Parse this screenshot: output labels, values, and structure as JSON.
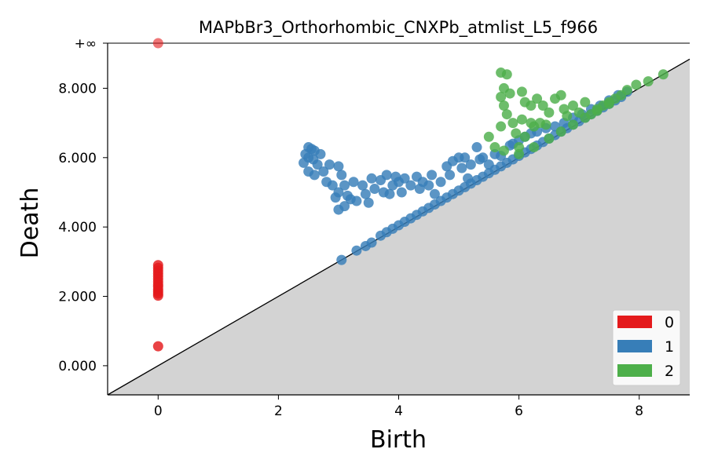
{
  "chart_data": {
    "type": "scatter",
    "title": "MAPbBr3_Orthorhombic_CNXPb_atmlist_L5_f966",
    "xlabel": "Birth",
    "ylabel": "Death",
    "xlim": [
      -0.84,
      8.84
    ],
    "ylim": [
      -0.84,
      9.3
    ],
    "x_ticks": [
      0,
      2,
      4,
      6,
      8
    ],
    "x_tick_labels": [
      "0",
      "2",
      "4",
      "6",
      "8"
    ],
    "y_ticks": [
      0,
      2,
      4,
      6,
      8
    ],
    "y_tick_labels": [
      "0.000",
      "2.000",
      "4.000",
      "6.000",
      "8.000"
    ],
    "infinity_value": 9.3,
    "infinity_label": "+∞",
    "diagonal": true,
    "legend_position": "bottom-right",
    "colors": {
      "0": "#e41a1c",
      "1": "#377eb8",
      "2": "#4daf4a",
      "diagonal_fill": "#d3d3d3"
    },
    "series": [
      {
        "name": "0",
        "color": "#e41a1c",
        "points": [
          [
            0,
            0.56
          ],
          [
            0,
            2.02
          ],
          [
            0,
            2.08
          ],
          [
            0,
            2.14
          ],
          [
            0,
            2.2
          ],
          [
            0,
            2.28
          ],
          [
            0,
            2.34
          ],
          [
            0,
            2.42
          ],
          [
            0,
            2.5
          ],
          [
            0,
            2.58
          ],
          [
            0,
            2.66
          ],
          [
            0,
            2.74
          ],
          [
            0,
            2.82
          ],
          [
            0,
            2.9
          ]
        ],
        "infinite_points": [
          [
            0,
            9.3
          ]
        ]
      },
      {
        "name": "1",
        "color": "#377eb8",
        "points": [
          [
            2.5,
            6.3
          ],
          [
            2.55,
            6.25
          ],
          [
            2.45,
            6.1
          ],
          [
            2.6,
            6.2
          ],
          [
            2.5,
            6.0
          ],
          [
            2.42,
            5.85
          ],
          [
            2.58,
            5.95
          ],
          [
            2.7,
            6.1
          ],
          [
            2.65,
            5.8
          ],
          [
            2.5,
            5.6
          ],
          [
            2.75,
            5.6
          ],
          [
            2.6,
            5.5
          ],
          [
            2.8,
            5.3
          ],
          [
            2.9,
            5.2
          ],
          [
            2.85,
            5.8
          ],
          [
            3.0,
            5.75
          ],
          [
            3.05,
            5.5
          ],
          [
            3.1,
            5.2
          ],
          [
            3.0,
            5.0
          ],
          [
            2.95,
            4.85
          ],
          [
            3.15,
            4.9
          ],
          [
            3.2,
            4.8
          ],
          [
            3.1,
            4.6
          ],
          [
            3.0,
            4.5
          ],
          [
            3.3,
            4.75
          ],
          [
            3.25,
            5.3
          ],
          [
            3.4,
            5.2
          ],
          [
            3.45,
            4.95
          ],
          [
            3.5,
            4.7
          ],
          [
            3.55,
            5.4
          ],
          [
            3.6,
            5.1
          ],
          [
            3.7,
            5.35
          ],
          [
            3.75,
            5.0
          ],
          [
            3.8,
            5.5
          ],
          [
            3.85,
            4.95
          ],
          [
            3.9,
            5.2
          ],
          [
            3.95,
            5.45
          ],
          [
            4.0,
            5.3
          ],
          [
            4.05,
            5.0
          ],
          [
            4.1,
            5.4
          ],
          [
            4.2,
            5.2
          ],
          [
            4.3,
            5.45
          ],
          [
            4.35,
            5.1
          ],
          [
            4.4,
            5.3
          ],
          [
            4.5,
            5.2
          ],
          [
            4.55,
            5.5
          ],
          [
            4.6,
            4.95
          ],
          [
            4.7,
            5.3
          ],
          [
            4.8,
            5.75
          ],
          [
            4.85,
            5.5
          ],
          [
            4.9,
            5.9
          ],
          [
            5.0,
            6.0
          ],
          [
            5.1,
            6.0
          ],
          [
            5.05,
            5.7
          ],
          [
            5.15,
            5.4
          ],
          [
            5.2,
            5.8
          ],
          [
            5.3,
            6.3
          ],
          [
            5.35,
            5.95
          ],
          [
            5.4,
            6.0
          ],
          [
            5.5,
            5.8
          ],
          [
            5.6,
            6.1
          ],
          [
            5.7,
            6.05
          ],
          [
            5.85,
            6.35
          ],
          [
            5.9,
            6.4
          ],
          [
            6.0,
            6.5
          ],
          [
            6.1,
            6.6
          ],
          [
            6.2,
            6.7
          ],
          [
            6.3,
            6.75
          ],
          [
            6.45,
            6.85
          ],
          [
            6.6,
            6.9
          ],
          [
            6.75,
            7.0
          ],
          [
            6.9,
            7.15
          ],
          [
            7.05,
            7.25
          ],
          [
            7.2,
            7.4
          ],
          [
            7.35,
            7.5
          ],
          [
            7.5,
            7.65
          ],
          [
            7.65,
            7.8
          ],
          [
            7.8,
            7.9
          ],
          [
            3.05,
            3.05
          ],
          [
            3.3,
            3.32
          ],
          [
            3.45,
            3.45
          ],
          [
            3.55,
            3.55
          ],
          [
            3.7,
            3.75
          ],
          [
            3.8,
            3.85
          ],
          [
            3.9,
            3.95
          ],
          [
            4.0,
            4.05
          ],
          [
            4.1,
            4.15
          ],
          [
            4.2,
            4.25
          ],
          [
            4.3,
            4.35
          ],
          [
            4.4,
            4.45
          ],
          [
            4.5,
            4.55
          ],
          [
            4.6,
            4.65
          ],
          [
            4.7,
            4.75
          ],
          [
            4.8,
            4.85
          ],
          [
            4.9,
            4.95
          ],
          [
            5.0,
            5.05
          ],
          [
            5.1,
            5.15
          ],
          [
            5.2,
            5.25
          ],
          [
            5.3,
            5.35
          ],
          [
            5.4,
            5.45
          ],
          [
            5.5,
            5.55
          ],
          [
            5.6,
            5.65
          ],
          [
            5.7,
            5.75
          ],
          [
            5.8,
            5.85
          ],
          [
            5.9,
            5.95
          ],
          [
            6.0,
            6.05
          ],
          [
            6.1,
            6.15
          ],
          [
            6.2,
            6.25
          ],
          [
            6.3,
            6.35
          ],
          [
            6.4,
            6.45
          ],
          [
            6.5,
            6.55
          ],
          [
            6.6,
            6.65
          ],
          [
            6.7,
            6.75
          ],
          [
            6.8,
            6.85
          ],
          [
            6.9,
            6.95
          ],
          [
            7.0,
            7.05
          ],
          [
            7.1,
            7.15
          ],
          [
            7.2,
            7.25
          ],
          [
            7.3,
            7.35
          ],
          [
            7.4,
            7.45
          ],
          [
            7.5,
            7.55
          ],
          [
            7.6,
            7.65
          ],
          [
            7.7,
            7.75
          ]
        ]
      },
      {
        "name": "2",
        "color": "#4daf4a",
        "points": [
          [
            5.7,
            8.45
          ],
          [
            5.8,
            8.4
          ],
          [
            5.75,
            8.0
          ],
          [
            5.7,
            7.75
          ],
          [
            5.85,
            7.85
          ],
          [
            5.75,
            7.5
          ],
          [
            5.8,
            7.25
          ],
          [
            5.9,
            7.0
          ],
          [
            5.7,
            6.9
          ],
          [
            6.05,
            7.9
          ],
          [
            6.1,
            7.6
          ],
          [
            6.2,
            7.5
          ],
          [
            6.05,
            7.1
          ],
          [
            6.2,
            7.0
          ],
          [
            5.95,
            6.7
          ],
          [
            6.1,
            6.6
          ],
          [
            6.3,
            7.7
          ],
          [
            6.4,
            7.5
          ],
          [
            6.5,
            7.3
          ],
          [
            6.35,
            7.0
          ],
          [
            6.6,
            7.7
          ],
          [
            6.7,
            7.8
          ],
          [
            6.75,
            7.4
          ],
          [
            6.8,
            7.2
          ],
          [
            6.9,
            7.5
          ],
          [
            7.0,
            7.3
          ],
          [
            7.1,
            7.6
          ],
          [
            7.2,
            7.25
          ],
          [
            7.3,
            7.4
          ],
          [
            7.4,
            7.5
          ],
          [
            7.5,
            7.6
          ],
          [
            7.6,
            7.7
          ],
          [
            7.7,
            7.8
          ],
          [
            7.8,
            7.95
          ],
          [
            7.95,
            8.1
          ],
          [
            8.15,
            8.2
          ],
          [
            8.4,
            8.4
          ],
          [
            6.0,
            6.1
          ],
          [
            6.25,
            6.3
          ],
          [
            6.5,
            6.55
          ],
          [
            6.7,
            6.75
          ],
          [
            6.9,
            6.95
          ],
          [
            7.1,
            7.15
          ],
          [
            7.3,
            7.35
          ],
          [
            7.5,
            7.55
          ],
          [
            5.75,
            6.2
          ],
          [
            5.5,
            6.6
          ],
          [
            5.6,
            6.3
          ],
          [
            6.0,
            6.3
          ],
          [
            6.25,
            6.9
          ],
          [
            6.45,
            6.95
          ]
        ]
      }
    ]
  }
}
